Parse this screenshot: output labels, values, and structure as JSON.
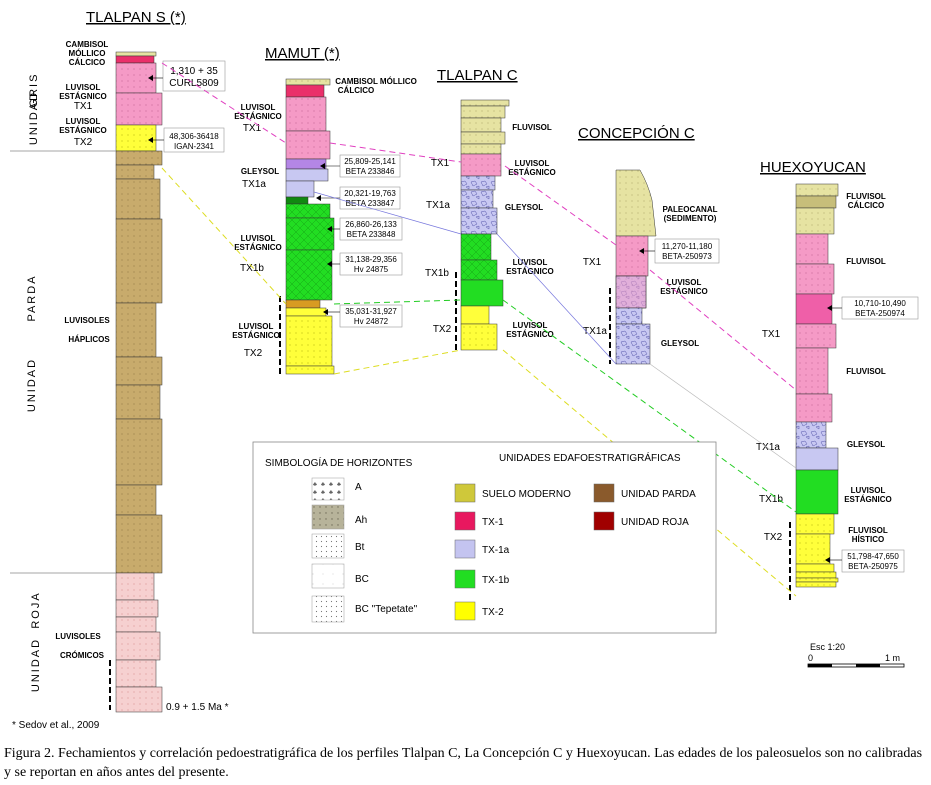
{
  "profiles": {
    "tlalpan_s": {
      "title": "TLALPAN S (*)",
      "soils": [
        "CAMBISOL",
        "MÓLLICO",
        "CÁLCICO",
        "LUVISOL",
        "ESTÁGNICO",
        "TX1",
        "LUVISOL",
        "ESTÁGNICO",
        "TX2",
        "LUVISOLES",
        "HÁPLICOS",
        "LUVISOLES",
        "CRÓMICOS"
      ],
      "dates": [
        "1,310 + 35",
        "CURL5809",
        "48,306-36418",
        "IGAN-2341"
      ],
      "bottom_age": "0.9 + 1.5 Ma *",
      "units": [
        "UNIDAD",
        "GRIS",
        "UNIDAD",
        "PARDA",
        "UNIDAD",
        "ROJA"
      ]
    },
    "mamut": {
      "title": "MAMUT (*)",
      "soils": [
        "CAMBISOL MÓLLICO",
        "CÁLCICO",
        "LUVISOL",
        "ESTÁGNICO",
        "TX1",
        "GLEYSOL",
        "TX1a",
        "LUVISOL",
        "ESTÁGNICO",
        "TX1b",
        "LUVISOL",
        "ESTÁGNICO",
        "TX2"
      ],
      "dates": [
        "25,809-25,141",
        "BETA 233846",
        "20,321-19,763",
        "BETA 233847",
        "26,860-26,133",
        "BETA 233848",
        "31,138-29,356",
        "Hv 24875",
        "35,031-31,927",
        "Hv 24872"
      ]
    },
    "tlalpan_c": {
      "title": "TLALPAN C",
      "soils": [
        "FLUVISOL",
        "TX1",
        "LUVISOL",
        "ESTÁGNICO",
        "TX1a",
        "GLEYSOL",
        "TX1b",
        "LUVISOL",
        "ESTÁGNICO",
        "TX2",
        "LUVISOL",
        "ESTÁGNICO"
      ]
    },
    "concepcion_c": {
      "title": "CONCEPCIÓN C",
      "soils": [
        "PALEOCANAL",
        "(SEDIMENTO)",
        "TX1",
        "LUVISOL",
        "ESTÁGNICO",
        "TX1a",
        "GLEYSOL"
      ],
      "dates": [
        "11,270-11,180",
        "BETA-250973"
      ]
    },
    "huexoyucan": {
      "title": "HUEXOYUCAN",
      "soils": [
        "FLUVISOL",
        "CÁLCICO",
        "FLUVISOL",
        "TX1",
        "FLUVISOL",
        "TX1a",
        "GLEYSOL",
        "TX1b",
        "LUVISOL",
        "ESTÁGNICO",
        "TX2",
        "FLUVISOL",
        "HÍSTICO"
      ],
      "dates": [
        "10,710-10,490",
        "BETA-250974",
        "51,798-47,650",
        "BETA-250975"
      ]
    }
  },
  "legend": {
    "horizons_title": "SIMBOLOGÍA DE HORIZONTES",
    "units_title": "UNIDADES    EDAFOESTRATIGRÁFICAS",
    "horizons": [
      "A",
      "Ah",
      "Bt",
      "BC",
      "BC \"Tepetate\""
    ],
    "units": [
      {
        "label": "SUELO MODERNO",
        "color": "#cfc83a"
      },
      {
        "label": "TX-1",
        "color": "#e8185f"
      },
      {
        "label": "TX-1a",
        "color": "#c4c4f0"
      },
      {
        "label": "TX-1b",
        "color": "#22dd22"
      },
      {
        "label": "TX-2",
        "color": "#ffff00"
      },
      {
        "label": "UNIDAD PARDA",
        "color": "#8a5a2c"
      },
      {
        "label": "UNIDAD ROJA",
        "color": "#a00000"
      }
    ]
  },
  "scale": {
    "label": "Esc 1:20",
    "zero": "0",
    "end": "1 m"
  },
  "footnote": "* Sedov et al., 2009",
  "caption": {
    "text": "Figura 2. Fechamientos y correlación pedoestratigráfica de los perfiles Tlalpan C, La Concepción C y Huexoyucan. Las edades de los paleosuelos son no calibradas y se reportan en años antes del presente."
  },
  "colors": {
    "brown": "#c8ab6c",
    "red": "#f4c7c7",
    "pink": "#f59ac6",
    "yellow": "#ffff3a",
    "green": "#22dd22",
    "lilac": "#c8c8f2",
    "olive": "#e6e3a2",
    "magenta_line": "#e040c0",
    "green_line": "#22cc22",
    "yellow_line": "#dddd22",
    "blue_line": "#7777dd"
  }
}
